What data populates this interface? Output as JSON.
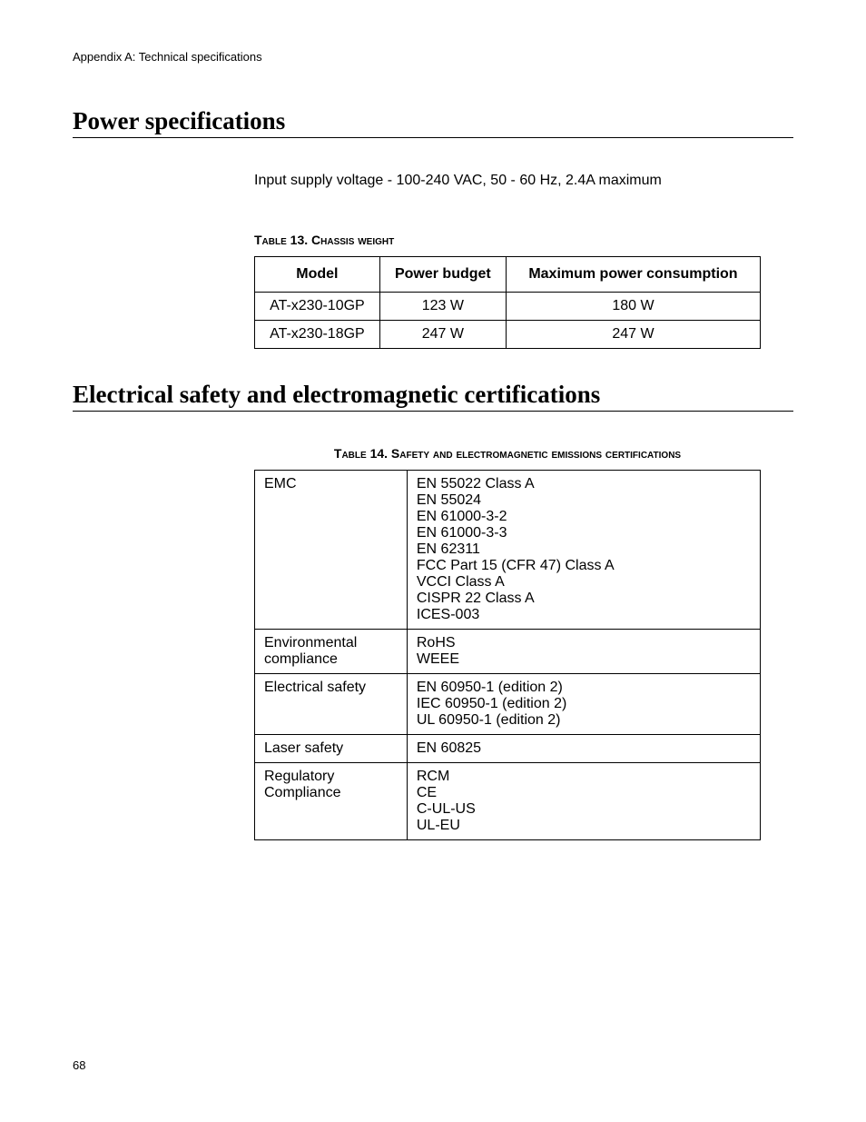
{
  "header": "Appendix A: Technical specifications",
  "section1": {
    "heading": "Power specifications",
    "body": "Input supply voltage - 100-240 VAC, 50 - 60 Hz, 2.4A maximum"
  },
  "table13": {
    "caption_prefix": "Table 13. ",
    "caption_rest": "Chassis weight",
    "headers": {
      "c1": "Model",
      "c2": "Power budget",
      "c3": "Maximum power consumption"
    },
    "rows": [
      {
        "c1": "AT-x230-10GP",
        "c2": "123 W",
        "c3": "180 W"
      },
      {
        "c1": "AT-x230-18GP",
        "c2": "247 W",
        "c3": "247 W"
      }
    ]
  },
  "section2": {
    "heading": "Electrical safety and electromagnetic certifications"
  },
  "table14": {
    "caption_prefix": "Table 14. ",
    "caption_rest": "Safety and electromagnetic emissions certifications",
    "rows": [
      {
        "label": "EMC",
        "values": [
          "EN 55022 Class A",
          "EN 55024",
          "EN 61000-3-2",
          "EN 61000-3-3",
          "EN 62311",
          "FCC Part 15 (CFR 47) Class A",
          "VCCI Class A",
          "CISPR 22 Class A",
          "ICES-003"
        ]
      },
      {
        "label": "Environmental compliance",
        "values": [
          "RoHS",
          "WEEE"
        ]
      },
      {
        "label": "Electrical safety",
        "values": [
          "EN 60950-1 (edition 2)",
          "IEC 60950-1 (edition 2)",
          "UL 60950-1 (edition 2)"
        ]
      },
      {
        "label": "Laser safety",
        "values": [
          "EN 60825"
        ]
      },
      {
        "label": "Regulatory Compliance",
        "values": [
          "RCM",
          "CE",
          "C-UL-US",
          "UL-EU"
        ]
      }
    ]
  },
  "page_number": "68"
}
